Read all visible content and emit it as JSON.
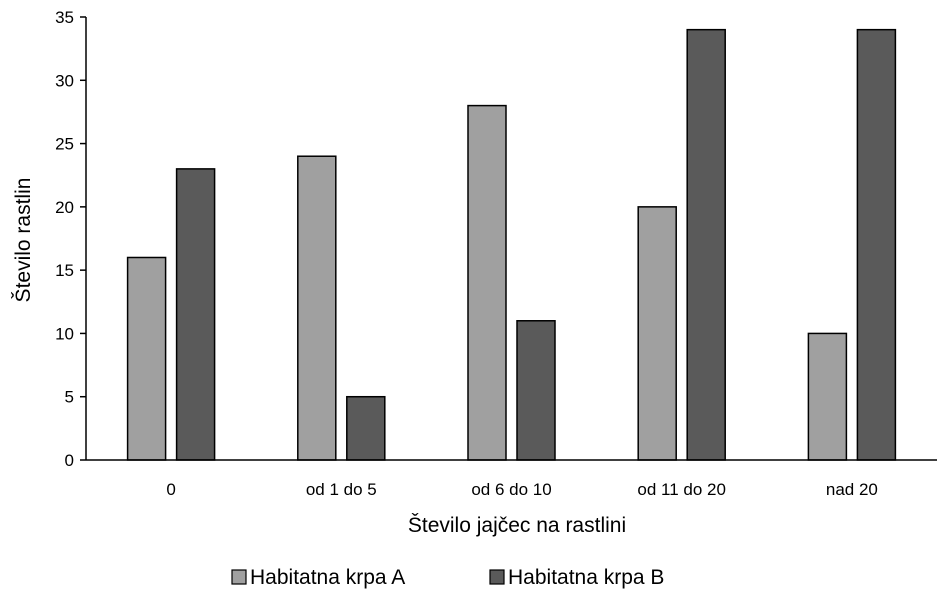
{
  "chart_data": {
    "type": "bar",
    "categories": [
      "0",
      "od 1 do 5",
      "od 6 do 10",
      "od 11 do 20",
      "nad 20"
    ],
    "series": [
      {
        "name": "Habitatna krpa A",
        "values": [
          16,
          24,
          28,
          20,
          10
        ],
        "color": "#a0a0a0"
      },
      {
        "name": "Habitatna krpa B",
        "values": [
          23,
          5,
          11,
          34,
          34
        ],
        "color": "#5a5a5a"
      }
    ],
    "title": "",
    "xlabel": "Število jajčec na rastlini",
    "ylabel": "Število rastlin",
    "ylim": [
      0,
      35
    ],
    "yticks": [
      0,
      5,
      10,
      15,
      20,
      25,
      30,
      35
    ],
    "grid": false,
    "legend": "bottom"
  }
}
